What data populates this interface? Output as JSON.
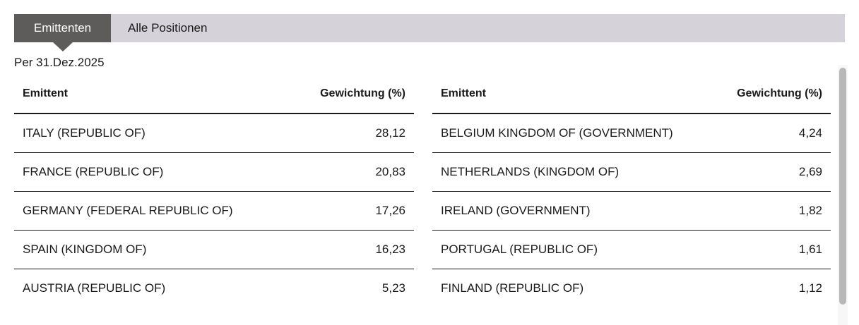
{
  "tabs": {
    "active": {
      "label": "Emittenten"
    },
    "inactive": {
      "label": "Alle Positionen"
    }
  },
  "date_label": "Per 31.Dez.2025",
  "columns": {
    "issuer": "Emittent",
    "weight": "Gewichtung (%)"
  },
  "left_table": {
    "rows": [
      {
        "name": "ITALY (REPUBLIC OF)",
        "weight": "28,12"
      },
      {
        "name": "FRANCE (REPUBLIC OF)",
        "weight": "20,83"
      },
      {
        "name": "GERMANY (FEDERAL REPUBLIC OF)",
        "weight": "17,26"
      },
      {
        "name": "SPAIN (KINGDOM OF)",
        "weight": "16,23"
      },
      {
        "name": "AUSTRIA (REPUBLIC OF)",
        "weight": "5,23"
      }
    ]
  },
  "right_table": {
    "rows": [
      {
        "name": "BELGIUM KINGDOM OF (GOVERNMENT)",
        "weight": "4,24"
      },
      {
        "name": "NETHERLANDS (KINGDOM OF)",
        "weight": "2,69"
      },
      {
        "name": "IRELAND (GOVERNMENT)",
        "weight": "1,82"
      },
      {
        "name": "PORTUGAL (REPUBLIC OF)",
        "weight": "1,61"
      },
      {
        "name": "FINLAND (REPUBLIC OF)",
        "weight": "1,12"
      }
    ]
  },
  "colors": {
    "active_tab_bg": "#5e5b5b",
    "tabbar_bg": "#d6d2d9",
    "text": "#1a1a1a",
    "rule": "#1a1a1a",
    "scrollbar_thumb": "#b8b8b8",
    "scrollbar_track": "#f7f7f7"
  }
}
